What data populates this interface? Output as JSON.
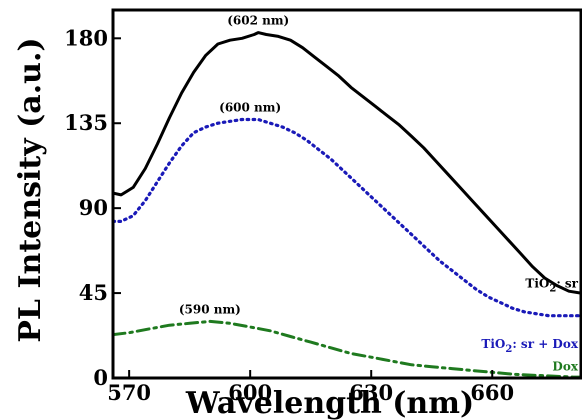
{
  "chart_data": {
    "type": "line",
    "title": "",
    "xlabel": "Wavelength (nm)",
    "ylabel": "PL Intensity (a.u.)",
    "xlim": [
      566,
      682
    ],
    "ylim": [
      0,
      195
    ],
    "xticks": [
      570,
      600,
      630,
      660
    ],
    "yticks": [
      0,
      45,
      90,
      135,
      180
    ],
    "grid": false,
    "annotations": [
      {
        "text": "(602 nm)",
        "x": 602,
        "y": 183
      },
      {
        "text": "(600 nm)",
        "x": 600,
        "y": 137
      },
      {
        "text": "(590 nm)",
        "x": 590,
        "y": 30
      }
    ],
    "series": [
      {
        "name": "TiO2: sr",
        "label_main": "TiO",
        "label_sub": "2",
        "label_rest": ": sr",
        "color": "#000000",
        "style": "solid",
        "x": [
          566,
          568,
          571,
          574,
          577,
          580,
          583,
          586,
          589,
          592,
          595,
          598,
          601,
          602,
          604,
          607,
          610,
          613,
          616,
          619,
          622,
          625,
          628,
          631,
          634,
          637,
          640,
          643,
          646,
          649,
          652,
          655,
          658,
          661,
          664,
          667,
          670,
          673,
          676,
          679,
          682
        ],
        "y": [
          98,
          97,
          101,
          111,
          124,
          138,
          151,
          162,
          171,
          177,
          179,
          180,
          182,
          183,
          182,
          181,
          179,
          175,
          170,
          165,
          160,
          154,
          149,
          144,
          139,
          134,
          128,
          122,
          115,
          108,
          101,
          94,
          87,
          80,
          73,
          66,
          59,
          53,
          49,
          46,
          45
        ]
      },
      {
        "name": "TiO2: sr + Dox",
        "label_main": "TiO",
        "label_sub": "2",
        "label_rest": ": sr + Dox",
        "color": "#1a1ab8",
        "style": "dotted",
        "x": [
          566,
          568,
          571,
          574,
          577,
          580,
          583,
          586,
          589,
          592,
          595,
          598,
          600,
          602,
          605,
          608,
          611,
          614,
          617,
          620,
          623,
          626,
          629,
          632,
          635,
          638,
          641,
          644,
          647,
          650,
          653,
          656,
          659,
          662,
          665,
          668,
          671,
          674,
          677,
          680,
          682
        ],
        "y": [
          83,
          83,
          86,
          94,
          104,
          114,
          123,
          130,
          133,
          135,
          136,
          137,
          137,
          137,
          135,
          133,
          130,
          126,
          121,
          116,
          110,
          104,
          98,
          92,
          86,
          80,
          74,
          68,
          62,
          57,
          52,
          47,
          43,
          40,
          37,
          35,
          34,
          33,
          33,
          33,
          33
        ]
      },
      {
        "name": "Dox",
        "label_main": "Dox",
        "label_sub": "",
        "label_rest": "",
        "color": "#1f7a1f",
        "style": "dashdot",
        "x": [
          566,
          570,
          575,
          580,
          585,
          590,
          595,
          600,
          605,
          610,
          615,
          620,
          625,
          630,
          635,
          640,
          645,
          650,
          655,
          660,
          665,
          670,
          675,
          680,
          682
        ],
        "y": [
          23,
          24,
          26,
          28,
          29,
          30,
          29,
          27,
          25,
          22,
          19,
          16,
          13,
          11,
          9,
          7,
          6,
          5,
          4,
          3,
          2,
          1.5,
          1,
          0.5,
          0.5
        ]
      }
    ]
  }
}
